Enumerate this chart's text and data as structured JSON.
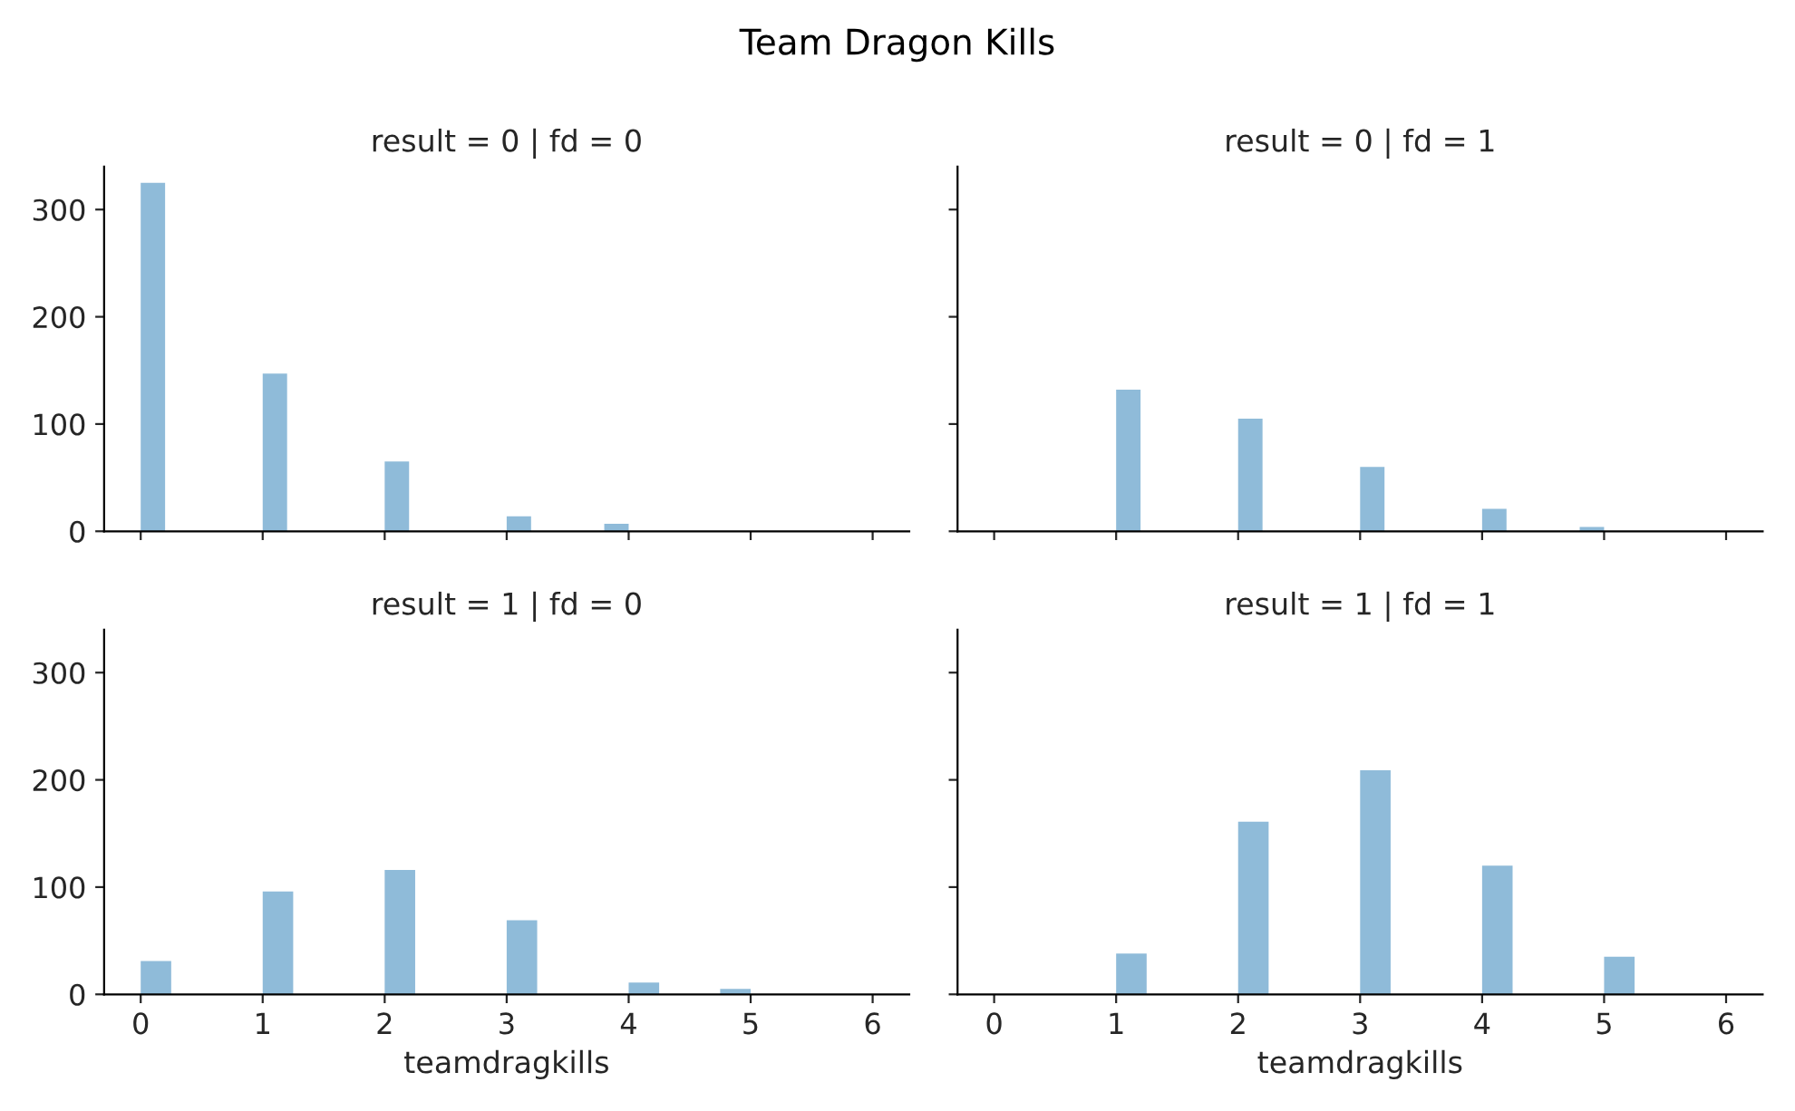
{
  "chart_data": [
    {
      "type": "other",
      "title": "Team Dragon Kills"
    },
    {
      "type": "histogram",
      "title": "result = 0 | fd = 0",
      "color": "#8fbbd9",
      "tick_labels": "y",
      "xlim": [
        -0.3,
        6.3
      ],
      "ylim": [
        0,
        340
      ],
      "xticks": [
        0,
        1,
        2,
        3,
        4,
        5,
        6
      ],
      "yticks": [
        0,
        100,
        200,
        300
      ],
      "bins": [
        0,
        0.2,
        0.4,
        0.6,
        0.8,
        1,
        1.2,
        1.4,
        1.6,
        1.8,
        2,
        2.2,
        2.4,
        2.6,
        2.8,
        3,
        3.2,
        3.4,
        3.6,
        3.8,
        4
      ],
      "values": [
        325,
        0,
        0,
        0,
        0,
        147,
        0,
        0,
        0,
        0,
        65,
        0,
        0,
        0,
        0,
        14,
        0,
        0,
        0,
        7
      ]
    },
    {
      "type": "histogram",
      "title": "result = 0 | fd = 1",
      "color": "#8fbbd9",
      "tick_labels": false,
      "xlim": [
        -0.3,
        6.3
      ],
      "ylim": [
        0,
        340
      ],
      "xticks": [
        0,
        1,
        2,
        3,
        4,
        5,
        6
      ],
      "yticks": [
        0,
        100,
        200,
        300
      ],
      "bins": [
        1,
        1.2,
        1.4,
        1.6,
        1.8,
        2,
        2.2,
        2.4,
        2.6,
        2.8,
        3,
        3.2,
        3.4,
        3.6,
        3.8,
        4,
        4.2,
        4.4,
        4.6,
        4.8,
        5
      ],
      "values": [
        132,
        0,
        0,
        0,
        0,
        105,
        0,
        0,
        0,
        0,
        60,
        0,
        0,
        0,
        0,
        21,
        0,
        0,
        0,
        4
      ]
    },
    {
      "type": "histogram",
      "title": "result = 1 | fd = 0",
      "xlabel": "teamdragkills",
      "color": "#8fbbd9",
      "xlim": [
        -0.3,
        6.3
      ],
      "ylim": [
        0,
        340
      ],
      "xticks": [
        0,
        1,
        2,
        3,
        4,
        5,
        6
      ],
      "yticks": [
        0,
        100,
        200,
        300
      ],
      "bins": [
        0,
        0.25,
        0.5,
        0.75,
        1,
        1.25,
        1.5,
        1.75,
        2,
        2.25,
        2.5,
        2.75,
        3,
        3.25,
        3.5,
        3.75,
        4,
        4.25,
        4.5,
        4.75,
        5
      ],
      "values": [
        31,
        0,
        0,
        0,
        96,
        0,
        0,
        0,
        116,
        0,
        0,
        0,
        69,
        0,
        0,
        0,
        11,
        0,
        0,
        5
      ]
    },
    {
      "type": "histogram",
      "title": "result = 1 | fd = 1",
      "xlabel": "teamdragkills",
      "color": "#8fbbd9",
      "tick_labels": "x",
      "xlim": [
        -0.3,
        6.3
      ],
      "ylim": [
        0,
        340
      ],
      "xticks": [
        0,
        1,
        2,
        3,
        4,
        5,
        6
      ],
      "yticks": [
        0,
        100,
        200,
        300
      ],
      "bins": [
        1,
        1.25,
        1.5,
        1.75,
        2,
        2.25,
        2.5,
        2.75,
        3,
        3.25,
        3.5,
        3.75,
        4,
        4.25,
        4.5,
        4.75,
        5,
        5.25
      ],
      "values": [
        38,
        0,
        0,
        0,
        161,
        0,
        0,
        0,
        209,
        0,
        0,
        0,
        120,
        0,
        0,
        0,
        35
      ]
    }
  ]
}
